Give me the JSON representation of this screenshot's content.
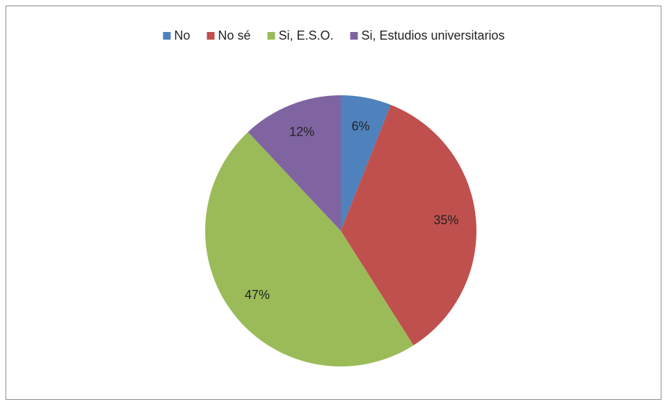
{
  "chart_data": {
    "type": "pie",
    "categories": [
      "No",
      "No sé",
      "Si, E.S.O.",
      "Si, Estudios universitarios"
    ],
    "values": [
      6,
      35,
      47,
      12
    ],
    "value_labels": [
      "6%",
      "35%",
      "47%",
      "12%"
    ],
    "colors": [
      "#4f81bd",
      "#c0504d",
      "#9bbb59",
      "#8064a2"
    ],
    "legend": "top"
  }
}
